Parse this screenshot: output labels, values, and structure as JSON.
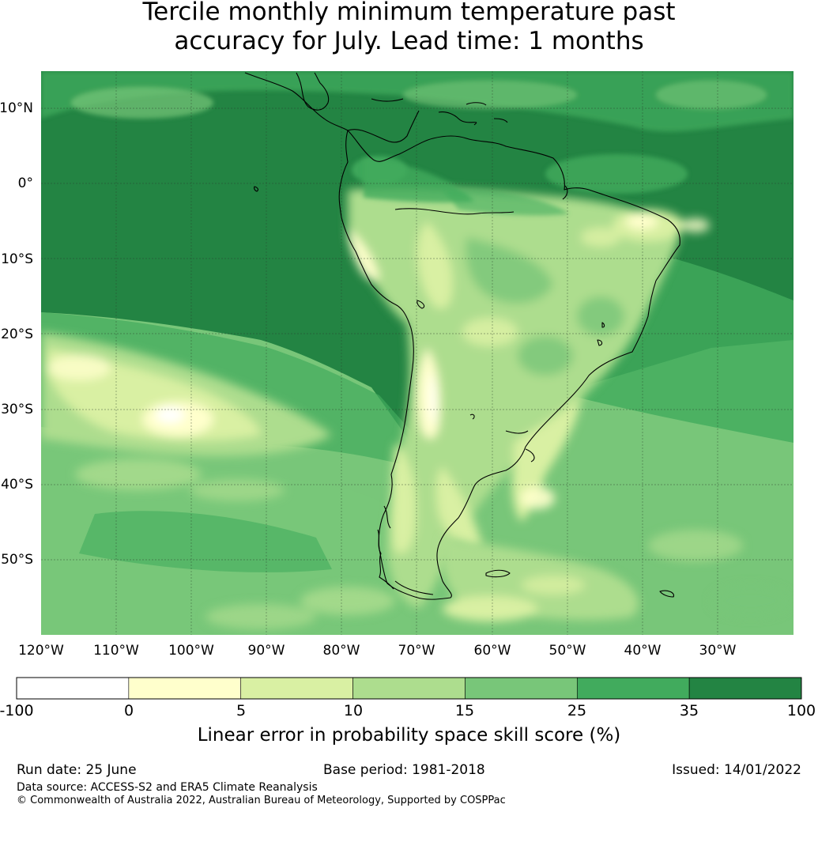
{
  "title": {
    "line1": "Tercile monthly minimum temperature past",
    "line2": "accuracy for July. Lead time: 1 months"
  },
  "map": {
    "lat_labels": [
      "10°N",
      "0°",
      "10°S",
      "20°S",
      "30°S",
      "40°S",
      "50°S"
    ],
    "lon_labels": [
      "120°W",
      "110°W",
      "100°W",
      "90°W",
      "80°W",
      "70°W",
      "60°W",
      "50°W",
      "40°W",
      "30°W"
    ]
  },
  "colorbar": {
    "ticks": [
      "-100",
      "0",
      "5",
      "10",
      "15",
      "25",
      "35",
      "100"
    ],
    "colors": [
      "#ffffff",
      "#ffffcc",
      "#d9f0a3",
      "#addd8e",
      "#78c679",
      "#41ab5d",
      "#238443"
    ],
    "title": "Linear error in probability space skill score (%)"
  },
  "footer": {
    "run_date": "Run date: 25 June",
    "base_period": "Base period: 1981-2018",
    "issued": "Issued: 14/01/2022",
    "data_source": "Data source: ACCESS-S2 and ERA5 Climate Reanalysis",
    "copyright": "© Commonwealth of Australia 2022, Australian Bureau of Meteorology, Supported by COSPPac"
  }
}
